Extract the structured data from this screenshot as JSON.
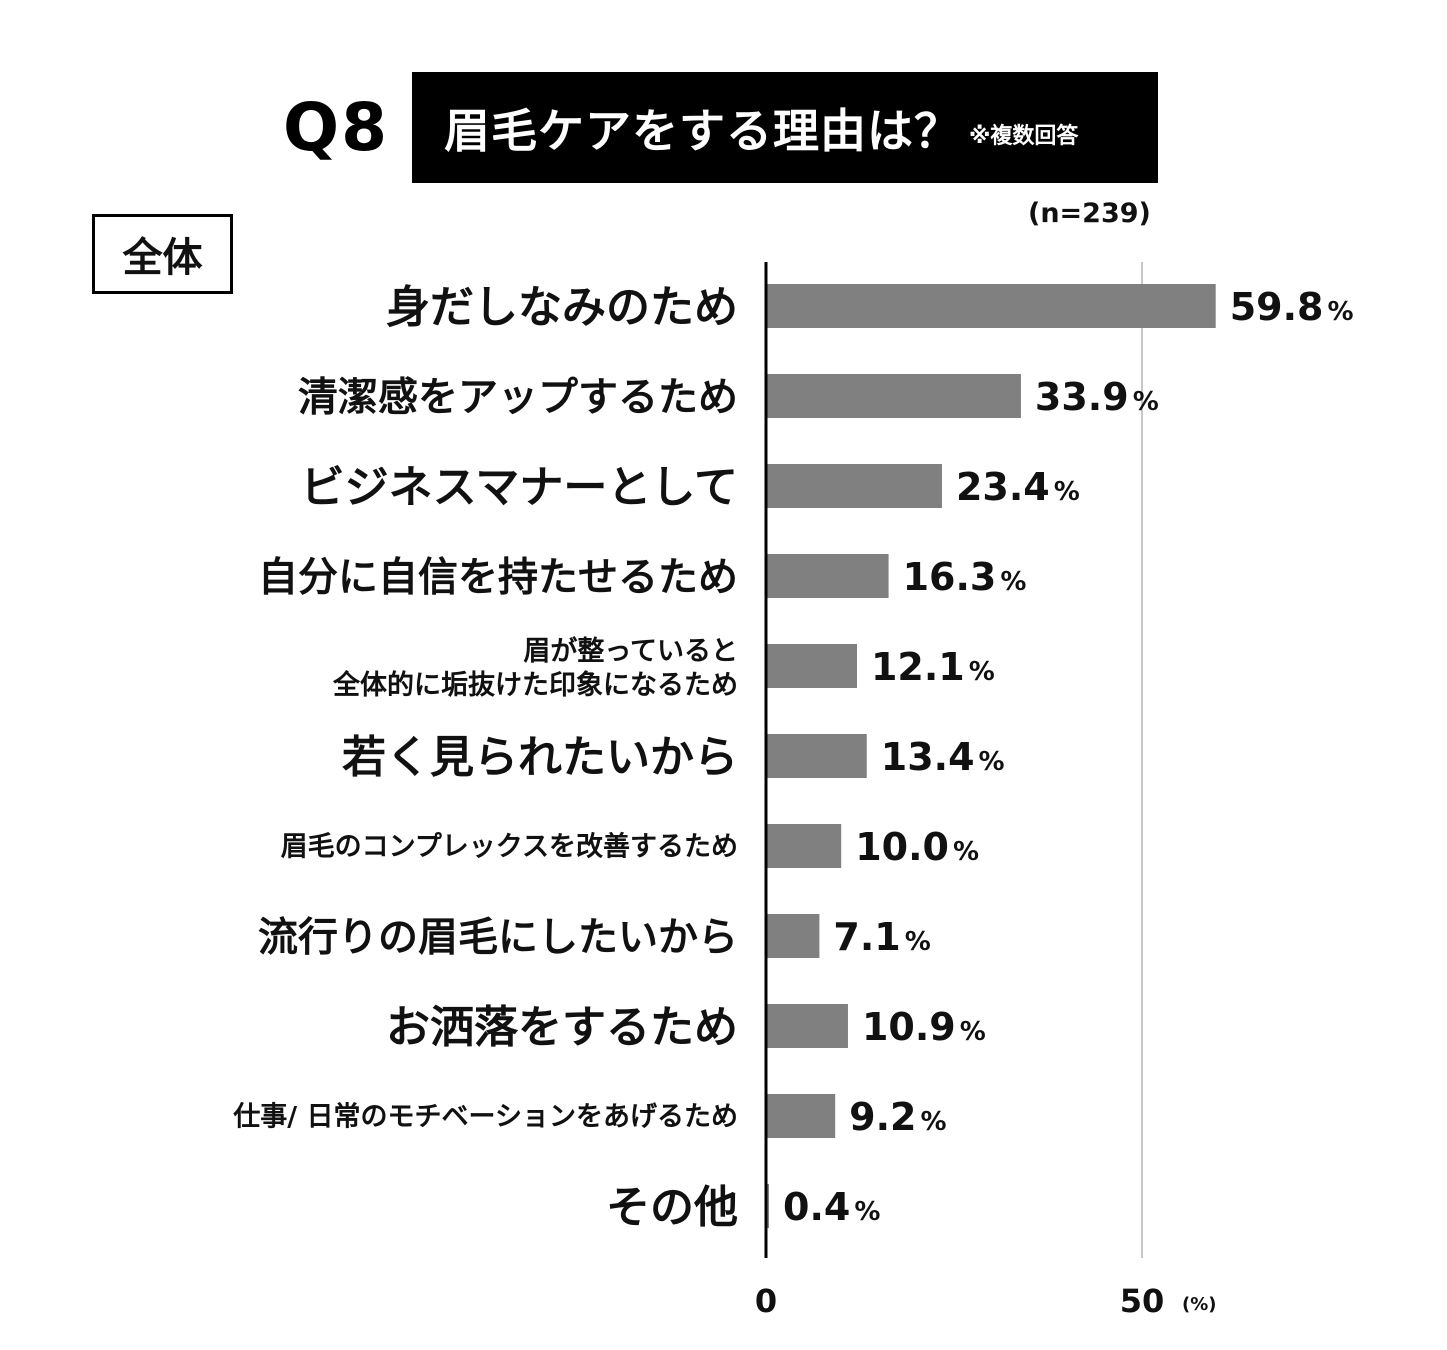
{
  "header": {
    "question_no": "Q8",
    "title": "眉毛ケアをする理由は？",
    "note": "※複数回答",
    "sample": "(n=239)",
    "group": "全体"
  },
  "colors": {
    "bar": "#808080",
    "axis": "#000000",
    "grid": "#c8c8c8",
    "title_bg": "#000000"
  },
  "chart_data": {
    "type": "bar",
    "orientation": "horizontal",
    "title": "眉毛ケアをする理由は？",
    "categories": [
      "身だしなみのため",
      "清潔感をアップするため",
      "ビジネスマナーとして",
      "自分に自信を持たせるため",
      "眉が整っていると\n全体的に垢抜けた印象になるため",
      "若く見られたいから",
      "眉毛のコンプレックスを改善するため",
      "流行りの眉毛にしたいから",
      "お洒落をするため",
      "仕事/ 日常のモチベーションをあげるため",
      "その他"
    ],
    "values": [
      59.8,
      33.9,
      23.4,
      16.3,
      12.1,
      13.4,
      10.0,
      7.1,
      10.9,
      9.2,
      0.4
    ],
    "value_labels": [
      "59.8",
      "33.9",
      "23.4",
      "16.3",
      "12.1",
      "13.4",
      "10.0",
      "7.1",
      "10.9",
      "9.2",
      "0.4"
    ],
    "percent_sign": "%",
    "xlim": [
      0,
      70
    ],
    "x_ticks": [
      0,
      50
    ],
    "x_tick_labels": [
      "0",
      "50"
    ],
    "x_unit": "(%)",
    "grid": true
  }
}
